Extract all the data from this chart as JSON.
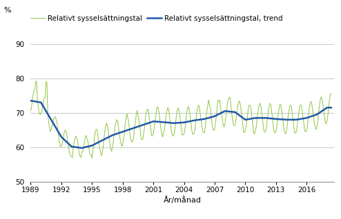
{
  "title": "",
  "ylabel": "%",
  "xlabel": "År/månad",
  "legend_labels": [
    "Relativt sysselsättningstal",
    "Relativt sysselsättningstal, trend"
  ],
  "line_color_raw": "#8dc63f",
  "line_color_trend": "#2058a8",
  "ylim": [
    50,
    90
  ],
  "yticks": [
    50,
    60,
    70,
    80,
    90
  ],
  "xticks": [
    1989,
    1992,
    1995,
    1998,
    2001,
    2004,
    2007,
    2010,
    2013,
    2016
  ],
  "bg_color": "#ffffff",
  "grid_color": "#c8c8c8",
  "start_year": 1989,
  "start_month": 1,
  "end_year": 2018,
  "end_month": 6
}
